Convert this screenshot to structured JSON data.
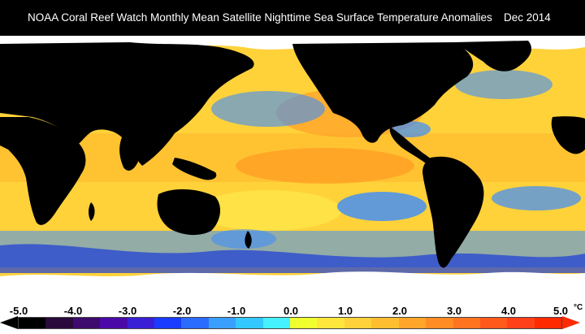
{
  "header": {
    "title": "NOAA Coral Reef Watch Monthly Mean Satellite Nighttime Sea Surface Temperature Anomalies",
    "date": "Dec 2014"
  },
  "colorbar": {
    "tick_labels": [
      "-5.0",
      "-4.0",
      "-3.0",
      "-2.0",
      "-1.0",
      "0.0",
      "1.0",
      "2.0",
      "3.0",
      "4.0",
      "5.0"
    ],
    "units": "°C",
    "min": -5.0,
    "max": 5.0,
    "colors": [
      "#000000",
      "#2a0a3c",
      "#3c0b6e",
      "#4b0aa8",
      "#3a1fd6",
      "#1a3cff",
      "#2b6cff",
      "#3aa0ff",
      "#33c8ff",
      "#45f0ff",
      "#f0ff2e",
      "#ffe63a",
      "#ffd23a",
      "#ffbe30",
      "#ffa52a",
      "#ff8c24",
      "#ff7420",
      "#ff5a1c",
      "#ff4018",
      "#ff2a00"
    ],
    "left_arrow_color": "#000000",
    "right_arrow_color": "#ff2a00"
  },
  "map_colors": {
    "land": "#000000",
    "ice": "#ffffff",
    "ocean_warm": "#ffcc33",
    "ocean_hot": "#ff9a22",
    "ocean_neutral": "#ffe84a",
    "ocean_cool": "#3a8cff",
    "ocean_cold": "#1a3cd8"
  }
}
